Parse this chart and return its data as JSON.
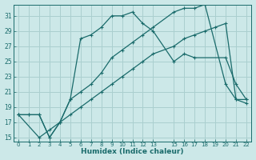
{
  "xlabel": "Humidex (Indice chaleur)",
  "bg_color": "#cce8e8",
  "grid_color": "#aacfcf",
  "line_color": "#1a6b6b",
  "line1": {
    "x": [
      0,
      1,
      2,
      3,
      4,
      5,
      6,
      7,
      8,
      9,
      10,
      11,
      12,
      13,
      15,
      16,
      17,
      18,
      20,
      21,
      22
    ],
    "y": [
      18,
      18,
      18,
      15,
      17,
      20,
      21,
      22,
      23.5,
      25.5,
      26.5,
      27.5,
      28.5,
      29.5,
      31.5,
      32,
      32,
      32.5,
      22,
      20,
      20
    ]
  },
  "line2": {
    "x": [
      0,
      2,
      3,
      4,
      5,
      6,
      7,
      8,
      9,
      10,
      11,
      12,
      13,
      15,
      16,
      17,
      18,
      19,
      20,
      21,
      22
    ],
    "y": [
      18,
      15,
      16,
      17,
      18,
      19,
      20,
      21,
      22,
      23,
      24,
      25,
      26,
      27,
      28,
      28.5,
      29,
      29.5,
      30,
      20,
      19.5
    ]
  },
  "line_main": {
    "x": [
      0,
      1,
      2,
      3,
      4,
      5,
      6,
      7,
      8,
      9,
      10,
      11,
      12,
      13,
      15,
      16,
      17,
      20,
      21,
      22
    ],
    "y": [
      18,
      18,
      18,
      15,
      17,
      20,
      28,
      28.5,
      29.5,
      31,
      31,
      31.5,
      30,
      29,
      25,
      26,
      25.5,
      25.5,
      22,
      20
    ]
  },
  "ylim": [
    14.5,
    32.5
  ],
  "xlim": [
    -0.5,
    22.5
  ],
  "yticks": [
    15,
    17,
    19,
    21,
    23,
    25,
    27,
    29,
    31
  ],
  "xticks": [
    0,
    1,
    2,
    3,
    4,
    5,
    6,
    7,
    8,
    9,
    10,
    11,
    12,
    13,
    15,
    16,
    17,
    18,
    19,
    20,
    21,
    22
  ]
}
